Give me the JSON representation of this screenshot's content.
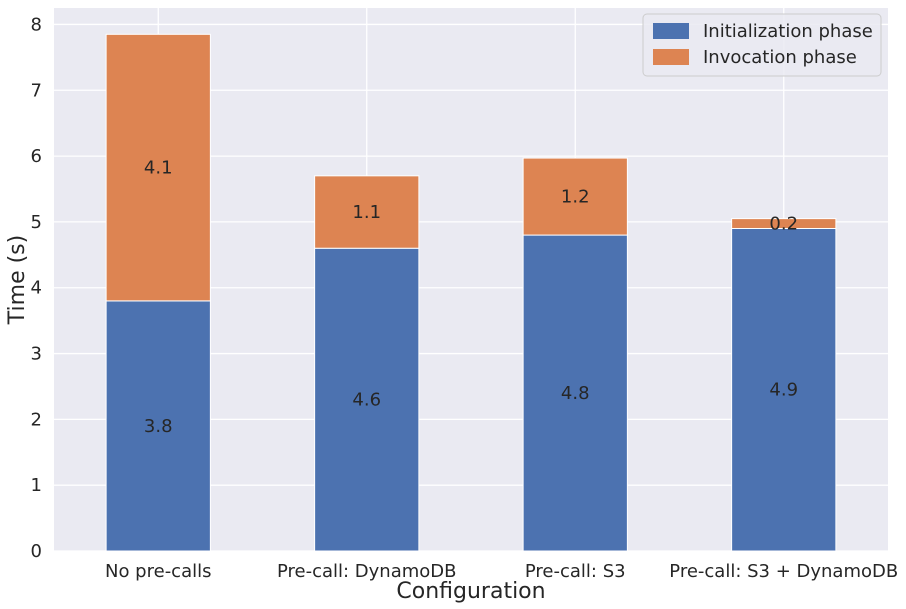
{
  "chart_data": {
    "type": "bar",
    "stacked": true,
    "categories": [
      "No pre-calls",
      "Pre-call: DynamoDB",
      "Pre-call: S3",
      "Pre-call: S3 + DynamoDB"
    ],
    "series": [
      {
        "name": "Initialization phase",
        "values": [
          3.8,
          4.6,
          4.8,
          4.9
        ],
        "display_values": [
          "3.8",
          "4.6",
          "4.8",
          "4.9"
        ],
        "color": "#4c72b0"
      },
      {
        "name": "Invocation phase",
        "values": [
          4.05,
          1.1,
          1.17,
          0.15
        ],
        "display_values": [
          "4.1",
          "1.1",
          "1.2",
          "0.2"
        ],
        "color": "#dd8452"
      }
    ],
    "xlabel": "Configuration",
    "ylabel": "Time (s)",
    "ylim": [
      0,
      8.25
    ],
    "yticks": [
      "0",
      "1",
      "2",
      "3",
      "4",
      "5",
      "6",
      "7",
      "8"
    ],
    "grid": true,
    "legend_position": "top-right",
    "plot_background": "#eaeaf2",
    "grid_color": "#ffffff"
  }
}
